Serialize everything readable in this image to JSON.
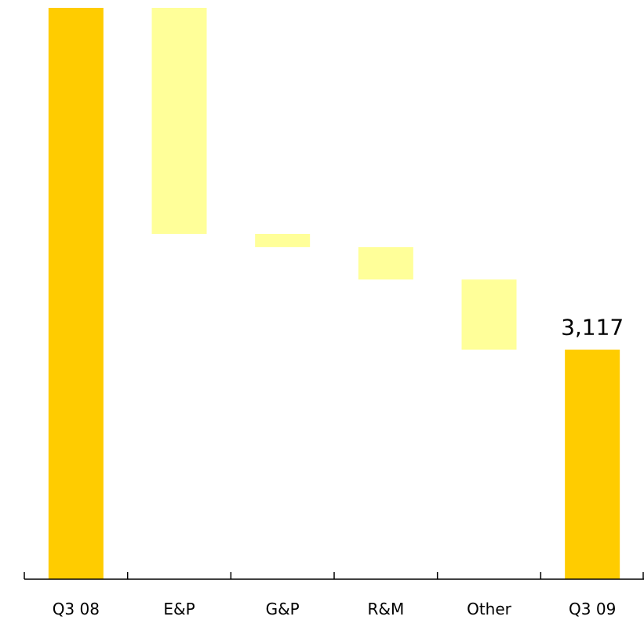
{
  "chart_data": {
    "type": "bar",
    "subtype": "waterfall",
    "categories": [
      "Q3 08",
      "E&P",
      "G&P",
      "R&M",
      "Other",
      "Q3 09"
    ],
    "bars": [
      {
        "category": "Q3 08",
        "kind": "total",
        "start": 0,
        "end": 7760
      },
      {
        "category": "E&P",
        "kind": "change",
        "start": 7760,
        "end": 4690
      },
      {
        "category": "G&P",
        "kind": "change",
        "start": 4690,
        "end": 4510
      },
      {
        "category": "R&M",
        "kind": "change",
        "start": 4510,
        "end": 4070
      },
      {
        "category": "Other",
        "kind": "change",
        "start": 4070,
        "end": 3117
      },
      {
        "category": "Q3 09",
        "kind": "total",
        "start": 0,
        "end": 3117
      }
    ],
    "data_labels": [
      {
        "category": "Q3 09",
        "text": "3,117"
      }
    ],
    "ylim": [
      0,
      7760
    ],
    "grid": false,
    "legend": "none",
    "colors": {
      "total": "#FFCC00",
      "change": "#FFFF99",
      "axis": "#000000"
    }
  }
}
